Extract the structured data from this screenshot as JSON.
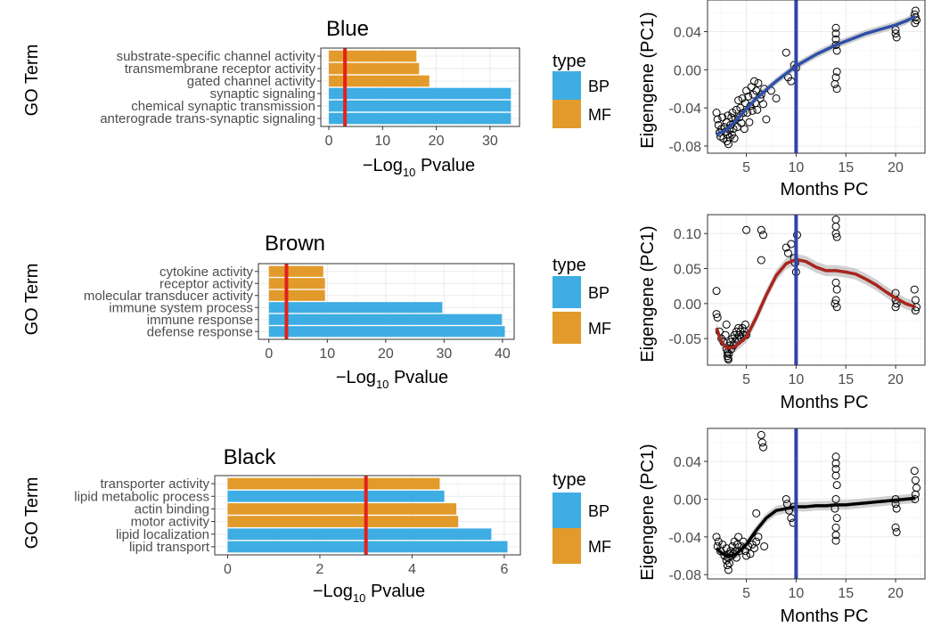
{
  "colors": {
    "BP": "#3DADE3",
    "MF": "#E29A2A",
    "threshold": "#E3211C",
    "month_line": "#3145A8",
    "blue_fit": "#2E4FA8",
    "brown_fit": "#A8251E",
    "black_fit": "#000000",
    "ci_band": "#BEBEBE",
    "panel_border": "#333333",
    "grid": "#EBEBEB"
  },
  "legend": {
    "title": "type",
    "items": [
      "BP",
      "MF"
    ]
  },
  "axis_text": {
    "go_term": "GO Term",
    "pvalue_prefix": "−Log",
    "pvalue_sub": "10",
    "pvalue_suffix": " Pvalue",
    "eigengene": "Eigengene (PC1)",
    "months": "Months PC"
  },
  "chart_data": [
    {
      "type": "bar",
      "orientation": "horizontal",
      "title": "Blue",
      "ylabel": "GO Term",
      "xlabel": "−Log10 Pvalue",
      "xlim": [
        -1.5,
        35.5
      ],
      "xticks": [
        0,
        10,
        20,
        30
      ],
      "threshold": 3,
      "categories": [
        "substrate-specific channel activity",
        "transmembrane receptor activity",
        "gated channel activity",
        "synaptic signaling",
        "chemical synaptic transmission",
        "anterograde trans-synaptic signaling"
      ],
      "values": [
        16.3,
        16.8,
        18.7,
        33.9,
        33.9,
        33.9
      ],
      "types": [
        "MF",
        "MF",
        "MF",
        "BP",
        "BP",
        "BP"
      ],
      "grid": true,
      "legend": "right"
    },
    {
      "type": "bar",
      "orientation": "horizontal",
      "title": "Brown",
      "ylabel": "GO Term",
      "xlabel": "−Log10 Pvalue",
      "xlim": [
        -1.8,
        42
      ],
      "xticks": [
        0,
        10,
        20,
        30,
        40
      ],
      "threshold": 3,
      "categories": [
        "cytokine activity",
        "receptor activity",
        "molecular transducer activity",
        "immune system process",
        "immune response",
        "defense response"
      ],
      "values": [
        9.3,
        9.6,
        9.6,
        29.7,
        39.9,
        40.4
      ],
      "types": [
        "MF",
        "MF",
        "MF",
        "BP",
        "BP",
        "BP"
      ],
      "grid": true,
      "legend": "right"
    },
    {
      "type": "bar",
      "orientation": "horizontal",
      "title": "Black",
      "ylabel": "GO Term",
      "xlabel": "−Log10 Pvalue",
      "xlim": [
        -0.28,
        6.35
      ],
      "xticks": [
        0,
        2,
        4,
        6
      ],
      "threshold": 3,
      "categories": [
        "transporter activity",
        "lipid metabolic process",
        "actin binding",
        "motor activity",
        "lipid localization",
        "lipid transport"
      ],
      "values": [
        4.6,
        4.7,
        4.96,
        5.0,
        5.72,
        6.07
      ],
      "types": [
        "MF",
        "BP",
        "MF",
        "MF",
        "BP",
        "BP"
      ],
      "grid": true,
      "legend": "right"
    },
    {
      "type": "scatter",
      "module": "Blue",
      "xlabel": "Months PC",
      "ylabel": "Eigengene (PC1)",
      "xlim": [
        1.1,
        22.95
      ],
      "ylim": [
        -0.0875,
        0.0732
      ],
      "xticks": [
        5,
        10,
        15,
        20
      ],
      "yticks": [
        -0.08,
        -0.04,
        0.0,
        0.04
      ],
      "vline": 10,
      "points": [
        [
          2.0,
          -0.045
        ],
        [
          2.1,
          -0.052
        ],
        [
          2.2,
          -0.058
        ],
        [
          2.3,
          -0.066
        ],
        [
          2.4,
          -0.07
        ],
        [
          2.5,
          -0.062
        ],
        [
          2.6,
          -0.05
        ],
        [
          2.7,
          -0.072
        ],
        [
          2.8,
          -0.06
        ],
        [
          2.9,
          -0.065
        ],
        [
          3.0,
          -0.055
        ],
        [
          3.05,
          -0.075
        ],
        [
          3.1,
          -0.068
        ],
        [
          3.15,
          -0.048
        ],
        [
          3.2,
          -0.078
        ],
        [
          3.3,
          -0.063
        ],
        [
          3.35,
          -0.071
        ],
        [
          3.4,
          -0.058
        ],
        [
          3.5,
          -0.05
        ],
        [
          3.55,
          -0.068
        ],
        [
          3.6,
          -0.045
        ],
        [
          3.7,
          -0.062
        ],
        [
          3.8,
          -0.072
        ],
        [
          3.9,
          -0.052
        ],
        [
          4.0,
          -0.042
        ],
        [
          4.1,
          -0.06
        ],
        [
          4.2,
          -0.032
        ],
        [
          4.3,
          -0.05
        ],
        [
          4.4,
          -0.04
        ],
        [
          4.5,
          -0.056
        ],
        [
          4.6,
          -0.03
        ],
        [
          4.7,
          -0.045
        ],
        [
          4.8,
          -0.062
        ],
        [
          4.9,
          -0.035
        ],
        [
          5.0,
          -0.022
        ],
        [
          5.1,
          -0.045
        ],
        [
          5.2,
          -0.028
        ],
        [
          5.3,
          -0.055
        ],
        [
          5.4,
          -0.038
        ],
        [
          5.5,
          -0.018
        ],
        [
          5.6,
          -0.043
        ],
        [
          5.7,
          -0.026
        ],
        [
          5.8,
          -0.012
        ],
        [
          5.9,
          -0.035
        ],
        [
          6.0,
          -0.022
        ],
        [
          6.1,
          -0.042
        ],
        [
          6.2,
          -0.014
        ],
        [
          6.4,
          -0.03
        ],
        [
          6.5,
          -0.026
        ],
        [
          6.7,
          -0.036
        ],
        [
          6.8,
          -0.02
        ],
        [
          7.0,
          -0.052
        ],
        [
          7.5,
          -0.022
        ],
        [
          8.0,
          -0.03
        ],
        [
          9.0,
          0.018
        ],
        [
          9.2,
          -0.008
        ],
        [
          9.5,
          -0.012
        ],
        [
          9.8,
          0.005
        ],
        [
          10.0,
          0.002
        ],
        [
          14.0,
          0.038
        ],
        [
          14.0,
          0.032
        ],
        [
          14.0,
          0.026
        ],
        [
          14.1,
          0.02
        ],
        [
          14.1,
          -0.002
        ],
        [
          14.0,
          -0.008
        ],
        [
          13.9,
          -0.015
        ],
        [
          14.1,
          -0.02
        ],
        [
          14.0,
          0.044
        ],
        [
          20.0,
          0.042
        ],
        [
          20.0,
          0.038
        ],
        [
          20.1,
          0.034
        ],
        [
          21.9,
          0.058
        ],
        [
          22.0,
          0.055
        ],
        [
          22.1,
          0.052
        ],
        [
          22.0,
          0.062
        ],
        [
          21.95,
          0.049
        ]
      ],
      "fit": [
        [
          2,
          -0.068
        ],
        [
          3,
          -0.063
        ],
        [
          4,
          -0.053
        ],
        [
          5,
          -0.041
        ],
        [
          6,
          -0.03
        ],
        [
          7,
          -0.021
        ],
        [
          8,
          -0.012
        ],
        [
          9,
          -0.004
        ],
        [
          10,
          0.004
        ],
        [
          11,
          0.01
        ],
        [
          12,
          0.016
        ],
        [
          13,
          0.021
        ],
        [
          14,
          0.026
        ],
        [
          15,
          0.03
        ],
        [
          16,
          0.034
        ],
        [
          17,
          0.038
        ],
        [
          18,
          0.041
        ],
        [
          19,
          0.044
        ],
        [
          20,
          0.047
        ],
        [
          21,
          0.051
        ],
        [
          22,
          0.056
        ]
      ],
      "ci_halfwidth": 0.004,
      "grid": true
    },
    {
      "type": "scatter",
      "module": "Brown",
      "xlabel": "Months PC",
      "ylabel": "Eigengene (PC1)",
      "xlim": [
        1.1,
        22.95
      ],
      "ylim": [
        -0.088,
        0.127
      ],
      "xticks": [
        5,
        10,
        15,
        20
      ],
      "yticks": [
        -0.05,
        0.0,
        0.05,
        0.1
      ],
      "vline": 10,
      "points": [
        [
          2.0,
          0.018
        ],
        [
          2.0,
          -0.015
        ],
        [
          2.1,
          -0.02
        ],
        [
          2.3,
          -0.04
        ],
        [
          2.5,
          -0.05
        ],
        [
          2.7,
          -0.055
        ],
        [
          2.9,
          -0.045
        ],
        [
          3.0,
          -0.03
        ],
        [
          3.0,
          -0.065
        ],
        [
          3.1,
          -0.07
        ],
        [
          3.1,
          -0.075
        ],
        [
          3.15,
          -0.078
        ],
        [
          3.2,
          -0.08
        ],
        [
          3.25,
          -0.072
        ],
        [
          3.3,
          -0.06
        ],
        [
          3.4,
          -0.055
        ],
        [
          3.5,
          -0.065
        ],
        [
          3.6,
          -0.05
        ],
        [
          3.7,
          -0.06
        ],
        [
          3.8,
          -0.045
        ],
        [
          3.9,
          -0.055
        ],
        [
          4.0,
          -0.04
        ],
        [
          4.1,
          -0.05
        ],
        [
          4.2,
          -0.035
        ],
        [
          4.3,
          -0.045
        ],
        [
          4.4,
          -0.04
        ],
        [
          4.5,
          -0.05
        ],
        [
          4.6,
          -0.035
        ],
        [
          4.7,
          -0.045
        ],
        [
          4.8,
          -0.04
        ],
        [
          4.9,
          -0.03
        ],
        [
          5.0,
          -0.045
        ],
        [
          5.0,
          0.105
        ],
        [
          6.5,
          0.105
        ],
        [
          6.7,
          0.098
        ],
        [
          6.5,
          0.062
        ],
        [
          9.0,
          0.08
        ],
        [
          9.2,
          0.072
        ],
        [
          9.5,
          0.085
        ],
        [
          9.8,
          0.065
        ],
        [
          9.9,
          0.058
        ],
        [
          10.0,
          0.045
        ],
        [
          10.1,
          0.098
        ],
        [
          14.0,
          0.12
        ],
        [
          14.0,
          0.11
        ],
        [
          14.0,
          0.1
        ],
        [
          14.1,
          0.095
        ],
        [
          14.0,
          0.03
        ],
        [
          14.1,
          0.02
        ],
        [
          14.0,
          0.005
        ],
        [
          13.9,
          0.0
        ],
        [
          14.1,
          -0.005
        ],
        [
          20.0,
          0.015
        ],
        [
          20.0,
          0.005
        ],
        [
          20.1,
          0.0
        ],
        [
          20.0,
          -0.005
        ],
        [
          21.9,
          0.02
        ],
        [
          22.0,
          0.005
        ],
        [
          22.1,
          -0.005
        ],
        [
          22.0,
          -0.01
        ]
      ],
      "fit": [
        [
          2,
          -0.035
        ],
        [
          2.5,
          -0.055
        ],
        [
          3,
          -0.063
        ],
        [
          3.5,
          -0.063
        ],
        [
          4,
          -0.06
        ],
        [
          5,
          -0.048
        ],
        [
          6,
          -0.02
        ],
        [
          7,
          0.012
        ],
        [
          8,
          0.04
        ],
        [
          9,
          0.057
        ],
        [
          10,
          0.063
        ],
        [
          11,
          0.06
        ],
        [
          12,
          0.052
        ],
        [
          13,
          0.047
        ],
        [
          14,
          0.047
        ],
        [
          15,
          0.045
        ],
        [
          16,
          0.042
        ],
        [
          17,
          0.035
        ],
        [
          18,
          0.027
        ],
        [
          19,
          0.017
        ],
        [
          20,
          0.008
        ],
        [
          21,
          0.0
        ],
        [
          22,
          -0.005
        ]
      ],
      "ci_halfwidth": 0.008,
      "grid": true
    },
    {
      "type": "scatter",
      "module": "Black",
      "xlabel": "Months PC",
      "ylabel": "Eigengene (PC1)",
      "xlim": [
        1.1,
        22.95
      ],
      "ylim": [
        -0.0845,
        0.075
      ],
      "xticks": [
        5,
        10,
        15,
        20
      ],
      "yticks": [
        -0.08,
        -0.04,
        0.0,
        0.04
      ],
      "vline": 10,
      "points": [
        [
          2.0,
          -0.04
        ],
        [
          2.1,
          -0.05
        ],
        [
          2.2,
          -0.045
        ],
        [
          2.4,
          -0.055
        ],
        [
          2.6,
          -0.048
        ],
        [
          2.8,
          -0.06
        ],
        [
          3.0,
          -0.052
        ],
        [
          3.0,
          -0.065
        ],
        [
          3.1,
          -0.07
        ],
        [
          3.15,
          -0.062
        ],
        [
          3.2,
          -0.075
        ],
        [
          3.25,
          -0.058
        ],
        [
          3.3,
          -0.068
        ],
        [
          3.4,
          -0.055
        ],
        [
          3.5,
          -0.06
        ],
        [
          3.6,
          -0.05
        ],
        [
          3.7,
          -0.058
        ],
        [
          3.8,
          -0.045
        ],
        [
          3.9,
          -0.055
        ],
        [
          4.0,
          -0.062
        ],
        [
          4.1,
          -0.048
        ],
        [
          4.2,
          -0.04
        ],
        [
          4.3,
          -0.055
        ],
        [
          4.5,
          -0.05
        ],
        [
          4.7,
          -0.045
        ],
        [
          4.9,
          -0.055
        ],
        [
          5.0,
          -0.06
        ],
        [
          5.2,
          -0.05
        ],
        [
          5.4,
          -0.058
        ],
        [
          5.6,
          -0.048
        ],
        [
          5.8,
          -0.052
        ],
        [
          6.0,
          -0.045
        ],
        [
          6.0,
          -0.015
        ],
        [
          6.5,
          0.068
        ],
        [
          6.6,
          0.06
        ],
        [
          6.7,
          0.055
        ],
        [
          6.2,
          -0.04
        ],
        [
          6.8,
          -0.05
        ],
        [
          9.0,
          0.0
        ],
        [
          9.1,
          -0.005
        ],
        [
          9.3,
          -0.012
        ],
        [
          9.5,
          -0.02
        ],
        [
          9.7,
          -0.025
        ],
        [
          9.8,
          -0.008
        ],
        [
          14.0,
          0.045
        ],
        [
          14.0,
          0.038
        ],
        [
          14.0,
          0.032
        ],
        [
          14.0,
          0.025
        ],
        [
          14.1,
          0.015
        ],
        [
          14.0,
          0.0
        ],
        [
          13.9,
          -0.01
        ],
        [
          14.1,
          -0.02
        ],
        [
          14.0,
          -0.03
        ],
        [
          14.0,
          -0.038
        ],
        [
          14.0,
          -0.044
        ],
        [
          20.0,
          0.0
        ],
        [
          20.0,
          -0.005
        ],
        [
          20.1,
          -0.01
        ],
        [
          20.0,
          -0.03
        ],
        [
          20.1,
          -0.035
        ],
        [
          21.9,
          0.03
        ],
        [
          22.0,
          0.02
        ],
        [
          22.1,
          0.012
        ],
        [
          22.0,
          0.005
        ],
        [
          21.95,
          0.0
        ]
      ],
      "fit": [
        [
          2,
          -0.052
        ],
        [
          2.5,
          -0.057
        ],
        [
          3,
          -0.06
        ],
        [
          3.5,
          -0.06
        ],
        [
          4,
          -0.058
        ],
        [
          5,
          -0.048
        ],
        [
          6,
          -0.033
        ],
        [
          7,
          -0.02
        ],
        [
          8,
          -0.012
        ],
        [
          9,
          -0.01
        ],
        [
          10,
          -0.008
        ],
        [
          11,
          -0.008
        ],
        [
          12,
          -0.007
        ],
        [
          13,
          -0.007
        ],
        [
          14,
          -0.006
        ],
        [
          15,
          -0.006
        ],
        [
          16,
          -0.005
        ],
        [
          17,
          -0.004
        ],
        [
          18,
          -0.003
        ],
        [
          19,
          -0.002
        ],
        [
          20,
          -0.001
        ],
        [
          21,
          0.0
        ],
        [
          22,
          0.001
        ]
      ],
      "ci_halfwidth": 0.005,
      "grid": true
    }
  ]
}
